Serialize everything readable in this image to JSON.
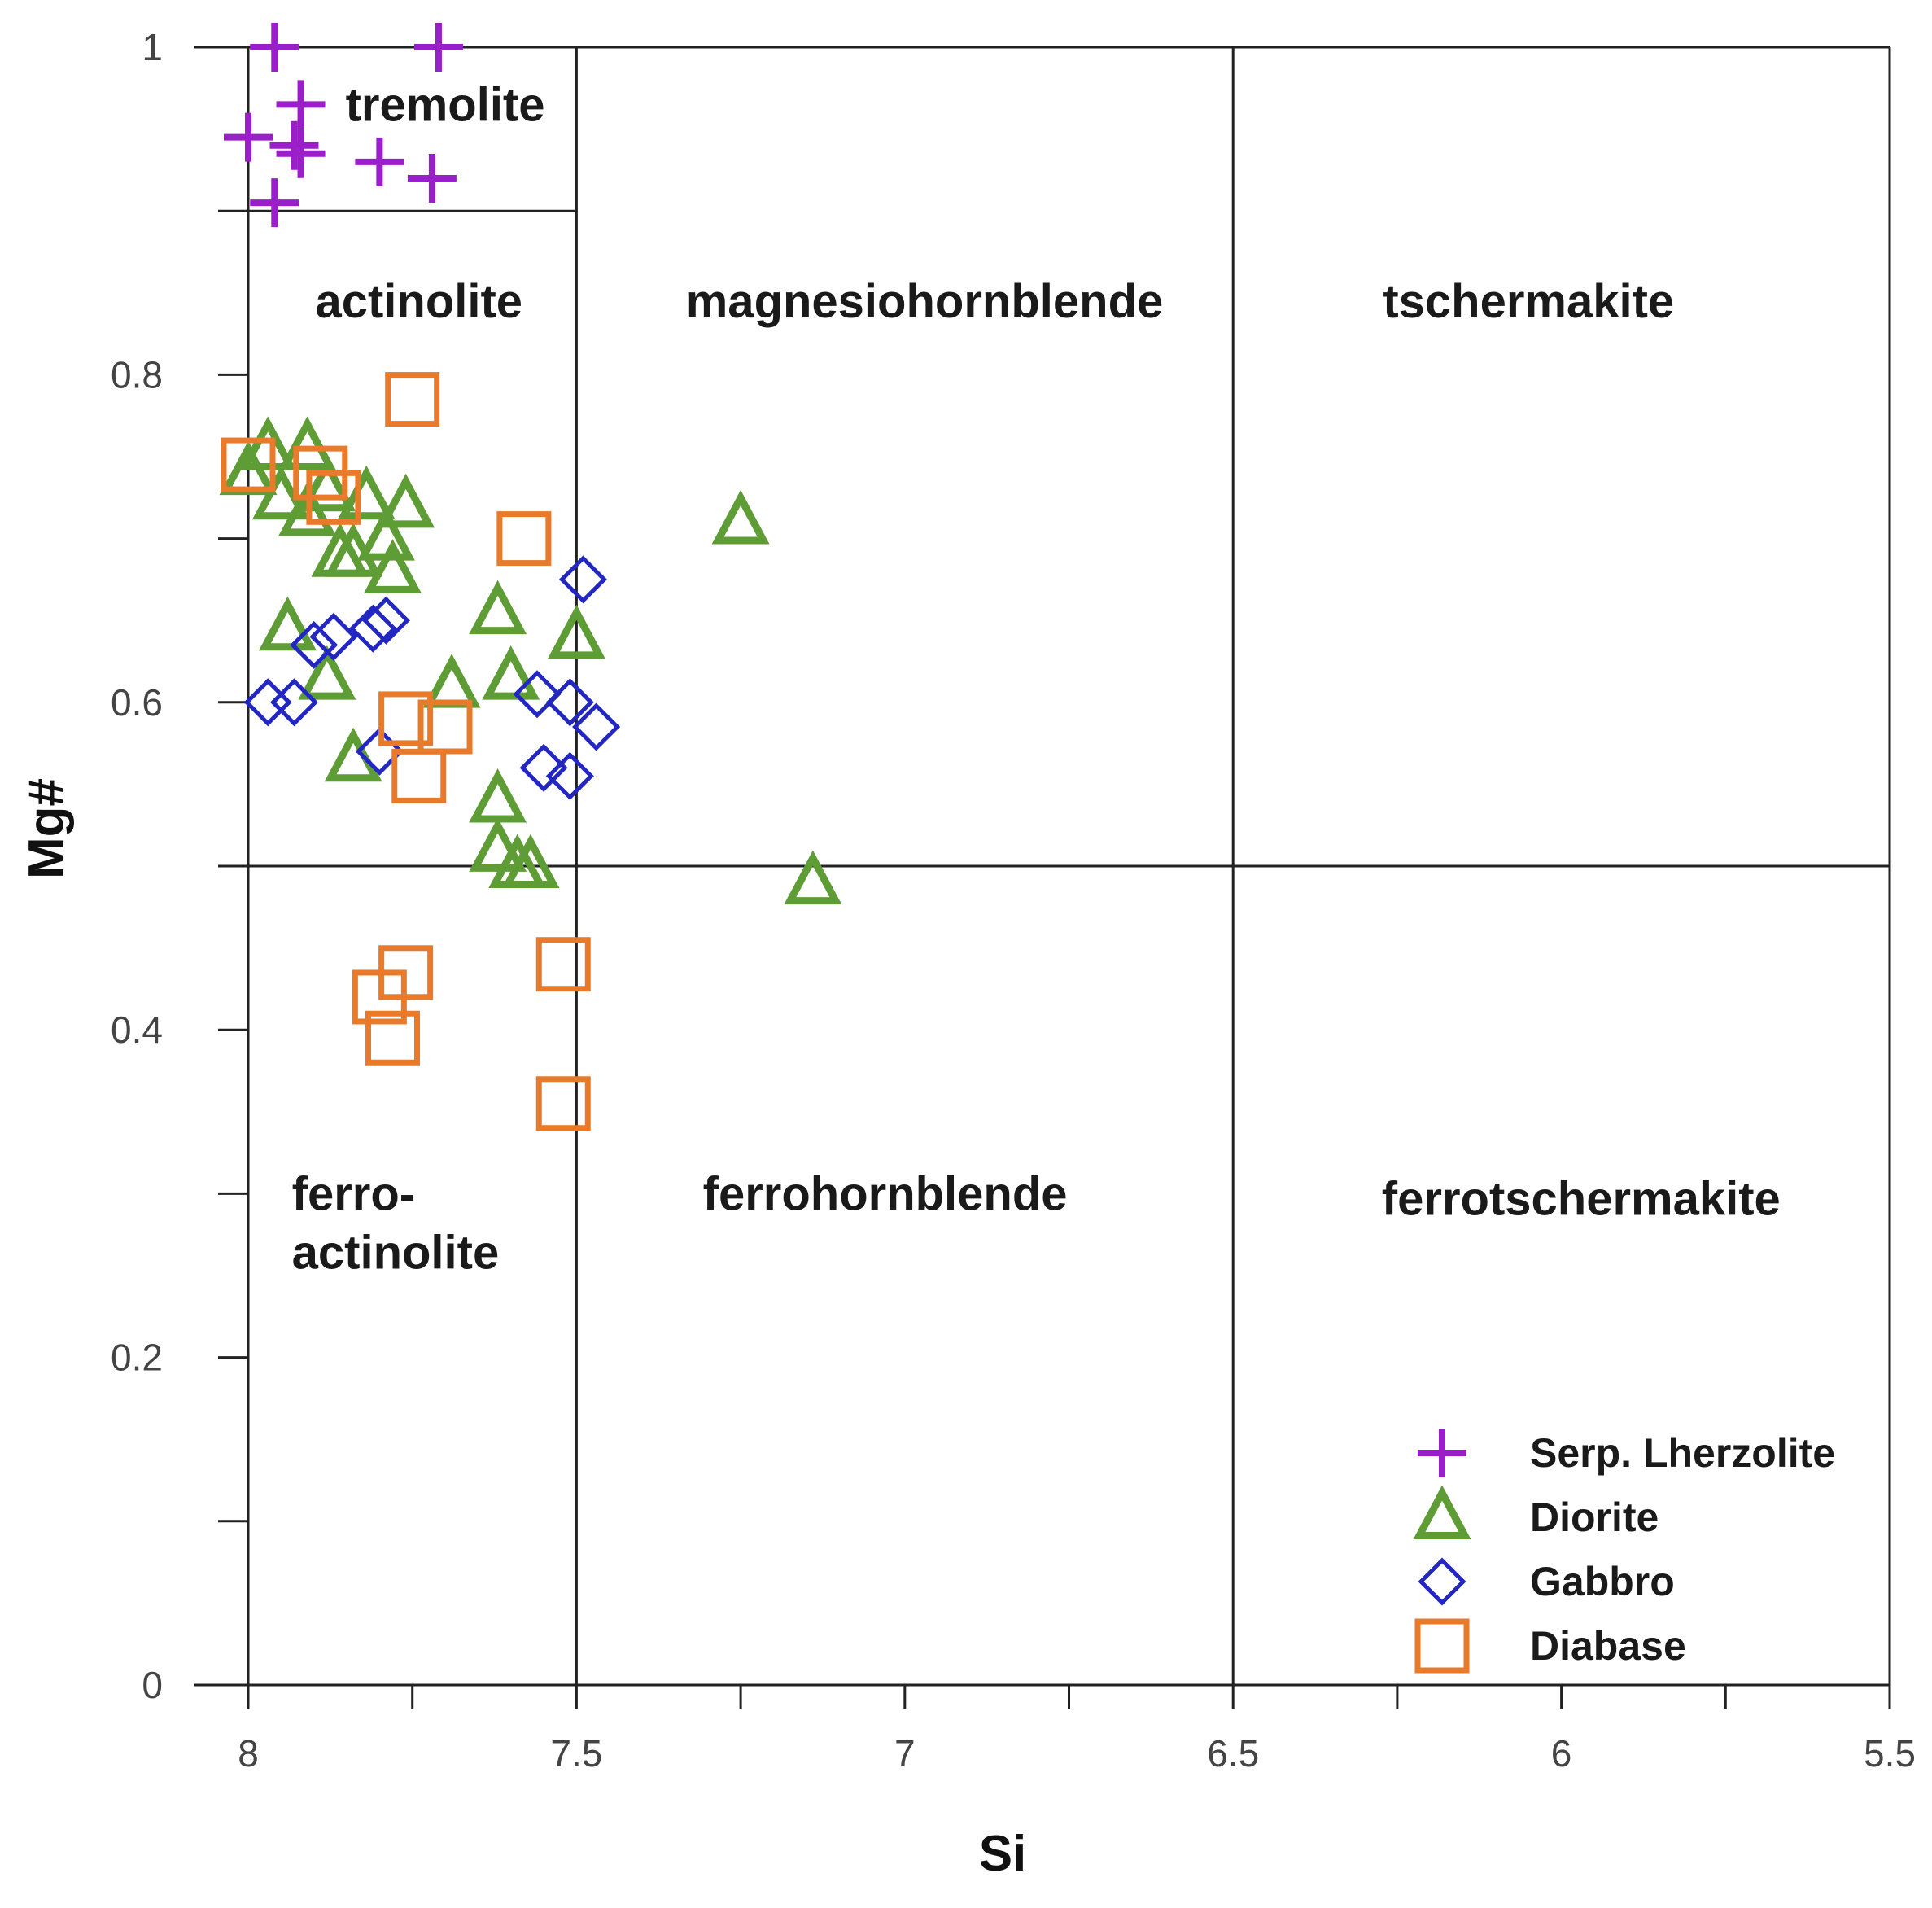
{
  "chart_data": {
    "type": "scatter",
    "title": "",
    "xlabel": "Si",
    "ylabel": "Mg#",
    "xlim": [
      8,
      5.5
    ],
    "ylim": [
      0,
      1
    ],
    "x_reversed": true,
    "x_ticks": [
      8,
      7.5,
      7,
      6.5,
      6,
      5.5
    ],
    "x_tick_labels": [
      "8",
      "7.5",
      "7",
      "6.5",
      "6",
      "5.5"
    ],
    "x_minor_ticks": [
      7.75,
      7.25,
      6.75,
      6.25,
      5.75
    ],
    "y_ticks": [
      0,
      0.2,
      0.4,
      0.6,
      0.8,
      1
    ],
    "y_tick_labels": [
      "0",
      "0.2",
      "0.4",
      "0.6",
      "0.8",
      "1"
    ],
    "y_minor_ticks": [
      0.1,
      0.3,
      0.5,
      0.7,
      0.9
    ],
    "grid": false,
    "boundaries": {
      "vertical": [
        {
          "x": 8,
          "y0": 0,
          "y1": 1
        },
        {
          "x": 7.5,
          "y0": 0,
          "y1": 1
        },
        {
          "x": 6.5,
          "y0": 0,
          "y1": 1
        }
      ],
      "horizontal": [
        {
          "y": 0.5,
          "x0": 8,
          "x1": 5.5
        },
        {
          "y": 0.9,
          "x0": 8,
          "x1": 7.5
        }
      ]
    },
    "regions": [
      {
        "lines": [
          "tremolite"
        ],
        "x": 7.7,
        "y": 0.955
      },
      {
        "lines": [
          "actinolite"
        ],
        "x": 7.74,
        "y": 0.835
      },
      {
        "lines": [
          "magnesiohornblende"
        ],
        "x": 6.97,
        "y": 0.835
      },
      {
        "lines": [
          "tschermakite"
        ],
        "x": 6.05,
        "y": 0.835
      },
      {
        "lines": [
          "ferro-",
          "actinolite"
        ],
        "x": 7.76,
        "y": 0.29
      },
      {
        "lines": [
          "ferrohornblende"
        ],
        "x": 7.03,
        "y": 0.29
      },
      {
        "lines": [
          "ferrotschermakite"
        ],
        "x": 5.97,
        "y": 0.287
      }
    ],
    "legend_position": "bottom-right",
    "series": [
      {
        "name": "Serp. Lherzolite",
        "marker": "plus",
        "color": "#9B1FC8",
        "points": [
          [
            7.96,
            1.0
          ],
          [
            7.71,
            1.0
          ],
          [
            7.92,
            0.965
          ],
          [
            8.0,
            0.945
          ],
          [
            7.93,
            0.94
          ],
          [
            7.92,
            0.935
          ],
          [
            7.8,
            0.93
          ],
          [
            7.72,
            0.92
          ],
          [
            7.96,
            0.905
          ]
        ]
      },
      {
        "name": "Diorite",
        "marker": "triangle",
        "color": "#5E9C35",
        "points": [
          [
            8.0,
            0.74
          ],
          [
            7.97,
            0.755
          ],
          [
            7.91,
            0.755
          ],
          [
            7.95,
            0.725
          ],
          [
            7.91,
            0.715
          ],
          [
            7.88,
            0.73
          ],
          [
            7.82,
            0.725
          ],
          [
            7.76,
            0.72
          ],
          [
            7.79,
            0.7
          ],
          [
            7.78,
            0.68
          ],
          [
            7.86,
            0.69
          ],
          [
            7.84,
            0.69
          ],
          [
            7.94,
            0.645
          ],
          [
            7.88,
            0.615
          ],
          [
            7.84,
            0.565
          ],
          [
            7.69,
            0.61
          ],
          [
            7.62,
            0.655
          ],
          [
            7.6,
            0.615
          ],
          [
            7.5,
            0.64
          ],
          [
            7.62,
            0.54
          ],
          [
            7.62,
            0.51
          ],
          [
            7.59,
            0.5
          ],
          [
            7.57,
            0.5
          ],
          [
            7.25,
            0.71
          ],
          [
            7.14,
            0.49
          ]
        ]
      },
      {
        "name": "Gabbro",
        "marker": "diamond",
        "color": "#2327C2",
        "points": [
          [
            7.49,
            0.675
          ],
          [
            7.79,
            0.65
          ],
          [
            7.81,
            0.645
          ],
          [
            7.9,
            0.635
          ],
          [
            7.87,
            0.64
          ],
          [
            7.97,
            0.6
          ],
          [
            7.93,
            0.6
          ],
          [
            7.8,
            0.57
          ],
          [
            7.56,
            0.605
          ],
          [
            7.51,
            0.6
          ],
          [
            7.47,
            0.585
          ],
          [
            7.55,
            0.56
          ],
          [
            7.51,
            0.555
          ]
        ]
      },
      {
        "name": "Diabase",
        "marker": "square",
        "color": "#E87A2A",
        "points": [
          [
            7.75,
            0.785
          ],
          [
            8.0,
            0.745
          ],
          [
            7.89,
            0.74
          ],
          [
            7.87,
            0.725
          ],
          [
            7.58,
            0.7
          ],
          [
            7.76,
            0.59
          ],
          [
            7.7,
            0.585
          ],
          [
            7.74,
            0.555
          ],
          [
            7.52,
            0.44
          ],
          [
            7.76,
            0.435
          ],
          [
            7.8,
            0.42
          ],
          [
            7.78,
            0.395
          ],
          [
            7.52,
            0.355
          ]
        ]
      }
    ]
  }
}
